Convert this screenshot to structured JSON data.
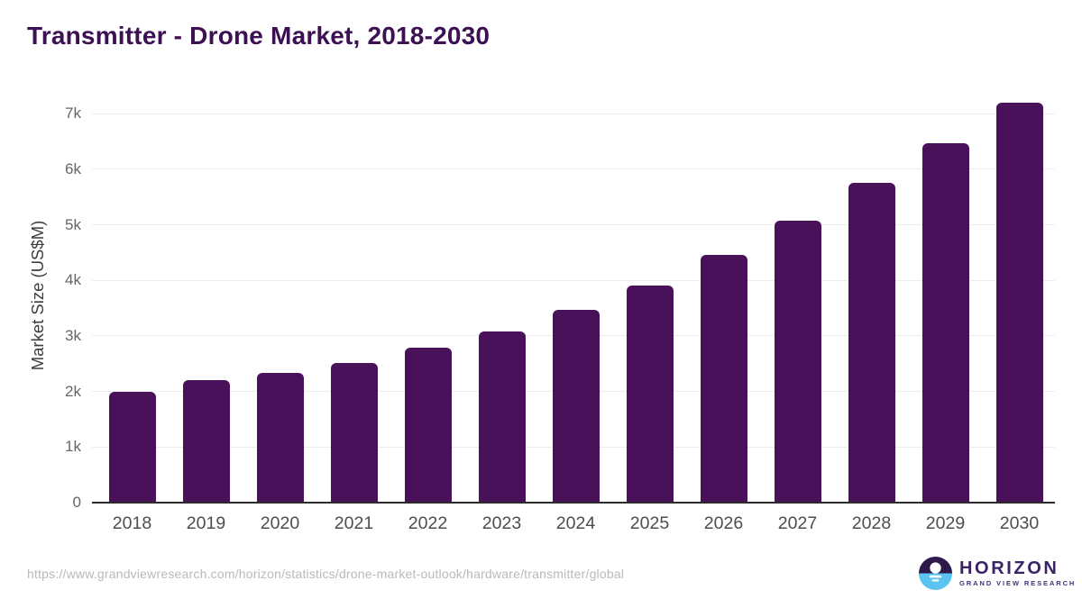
{
  "title": "Transmitter - Drone Market, 2018-2030",
  "chart_data": {
    "type": "bar",
    "title": "Transmitter - Drone Market, 2018-2030",
    "categories": [
      "2018",
      "2019",
      "2020",
      "2021",
      "2022",
      "2023",
      "2024",
      "2025",
      "2026",
      "2027",
      "2028",
      "2029",
      "2030"
    ],
    "values": [
      2000,
      2210,
      2330,
      2520,
      2780,
      3080,
      3470,
      3910,
      4460,
      5070,
      5760,
      6460,
      7200
    ],
    "xlabel": "",
    "ylabel": "Market Size (US$M)",
    "ytick_labels": [
      "0",
      "1k",
      "2k",
      "3k",
      "4k",
      "5k",
      "6k",
      "7k"
    ],
    "ytick_values": [
      0,
      1000,
      2000,
      3000,
      4000,
      5000,
      6000,
      7000
    ],
    "ylim": [
      0,
      7460
    ],
    "grid": "horizontal",
    "legend": "none",
    "bar_color": "#481159"
  },
  "colors": {
    "title": "#3c1053",
    "bar": "#481159",
    "axis_line": "#2b2b2b",
    "gridline": "#ededed",
    "tick_text": "#666666",
    "url_text": "#b9b9b9",
    "logo_dark": "#2d1a4a",
    "logo_blue": "#5ac3f0",
    "logo_text": "#3a2365"
  },
  "footer": {
    "source_url": "https://www.grandviewresearch.com/horizon/statistics/drone-market-outlook/hardware/transmitter/global",
    "logo_name": "HORIZON",
    "logo_subname": "GRAND VIEW RESEARCH"
  }
}
